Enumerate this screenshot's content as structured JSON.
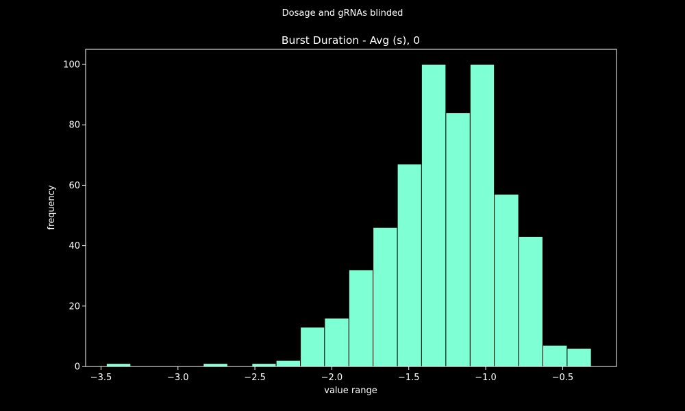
{
  "chart_data": {
    "type": "bar",
    "suptitle": "Dosage and gRNAs blinded",
    "title": "Burst Duration - Avg (s), 0",
    "xlabel": "value range",
    "ylabel": "frequency",
    "xlim": [
      -3.6,
      -0.15
    ],
    "ylim": [
      0,
      105
    ],
    "x_ticks": [
      -3.5,
      -3.0,
      -2.5,
      -2.0,
      -1.5,
      -1.0,
      -0.5
    ],
    "x_tick_labels": [
      "−3.5",
      "−3.0",
      "−2.5",
      "−2.0",
      "−1.5",
      "−1.0",
      "−0.5"
    ],
    "y_ticks": [
      0,
      20,
      40,
      60,
      80,
      100
    ],
    "y_tick_labels": [
      "0",
      "20",
      "40",
      "60",
      "80",
      "100"
    ],
    "bin_edges": [
      -3.465,
      -3.307,
      -3.15,
      -2.992,
      -2.835,
      -2.677,
      -2.519,
      -2.362,
      -2.204,
      -2.047,
      -1.889,
      -1.732,
      -1.574,
      -1.417,
      -1.259,
      -1.101,
      -0.944,
      -0.786,
      -0.629,
      -0.471,
      -0.314
    ],
    "values": [
      1,
      0,
      0,
      0,
      1,
      0,
      1,
      2,
      13,
      16,
      32,
      46,
      67,
      100,
      84,
      100,
      57,
      43,
      7,
      6
    ],
    "bar_color": "#7fffd4",
    "edge_color": "#000000",
    "background": "#000000",
    "grid": false,
    "legend": false
  }
}
